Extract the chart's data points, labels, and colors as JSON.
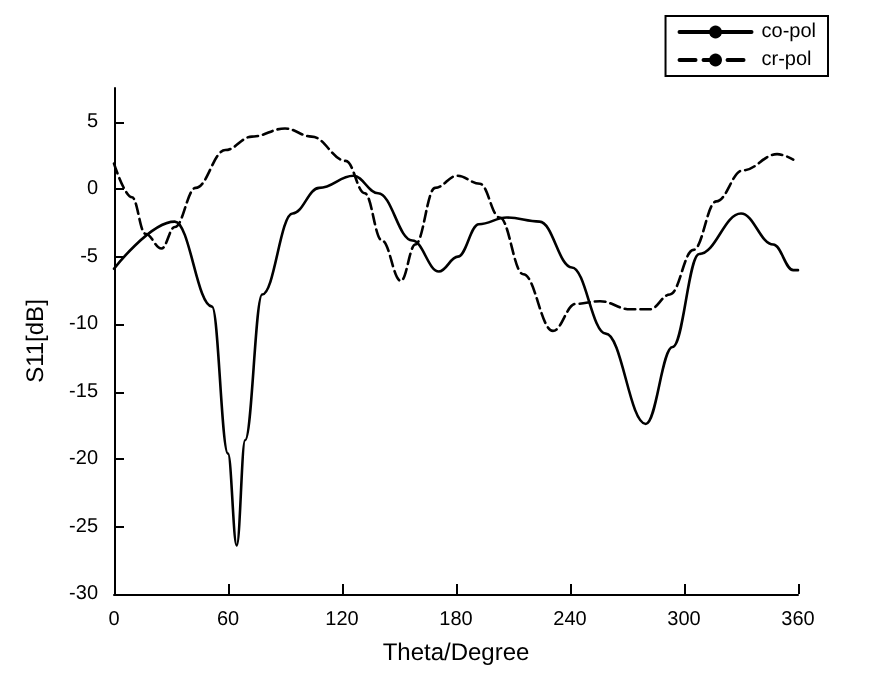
{
  "chart_data": {
    "type": "line",
    "xlabel": "Theta/Degree",
    "ylabel": "S11[dB]",
    "xlim": [
      0,
      360
    ],
    "xticks": [
      0,
      60,
      120,
      180,
      240,
      300,
      360
    ],
    "ylim": [
      -30,
      7.5
    ],
    "yticks": [
      -30,
      -25,
      -20,
      -15,
      -10,
      -5,
      0,
      5
    ],
    "grid": false,
    "legend": "top right",
    "marker": "none",
    "series": [
      {
        "name": "co-pol",
        "color": "#000000",
        "line_style": "solid",
        "x": [
          0,
          32,
          51.6,
          60,
          64.6,
          69,
          78,
          94,
          108,
          126,
          139,
          157,
          171,
          181,
          192,
          206.7,
          224,
          241,
          258.8,
          279.9,
          294,
          308,
          330,
          347,
          357.5,
          360
        ],
        "values": [
          -5.9,
          -2.4,
          -8.7,
          -19.6,
          -26.4,
          -18.6,
          -7.8,
          -1.8,
          0.1,
          1.0,
          -0.3,
          -3.8,
          -6.1,
          -5.0,
          -2.6,
          -2.1,
          -2.4,
          -5.8,
          -10.7,
          -17.4,
          -11.7,
          -4.8,
          -1.8,
          -4.1,
          -6.0,
          -6.0
        ]
      },
      {
        "name": "cr-pol",
        "color": "#000000",
        "line_style": "dashed",
        "x": [
          0,
          9.5,
          16.5,
          25,
          32,
          43,
          58.6,
          72.6,
          90,
          104,
          122,
          132,
          141,
          151,
          158.6,
          169,
          180.7,
          192.6,
          203,
          215.4,
          231,
          243,
          255.8,
          271.6,
          282,
          292.6,
          305,
          317,
          331,
          349,
          357.5
        ],
        "values": [
          1.9,
          -0.6,
          -3.3,
          -4.4,
          -2.8,
          0.1,
          2.9,
          3.9,
          4.5,
          3.9,
          2.1,
          -0.3,
          -3.8,
          -6.8,
          -4.1,
          0.1,
          1.0,
          0.4,
          -2.1,
          -6.3,
          -10.5,
          -8.5,
          -8.3,
          -8.9,
          -8.9,
          -7.8,
          -4.5,
          -0.9,
          1.4,
          2.6,
          2.2
        ]
      }
    ]
  }
}
